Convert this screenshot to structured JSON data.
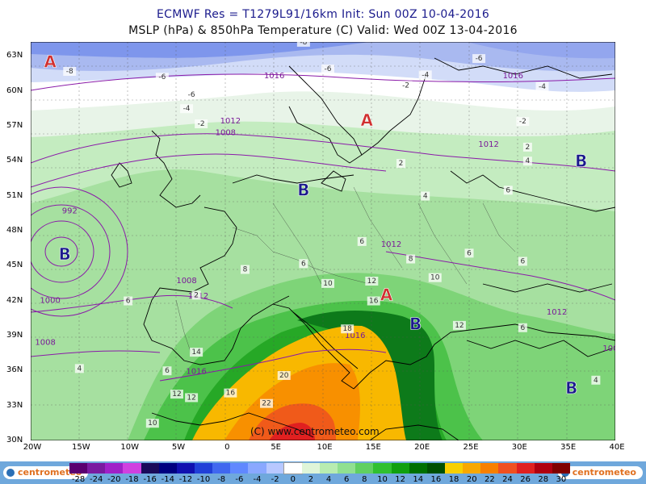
{
  "header": {
    "line1": "ECMWF Res = T1279L91/16km   Init: Sun 00Z 10-04-2016",
    "line2": "MSLP (hPa) & 850hPa Temperature (C)  Valid: Wed 00Z 13-04-2016"
  },
  "map": {
    "lat_labels": [
      "63N",
      "60N",
      "57N",
      "54N",
      "51N",
      "48N",
      "45N",
      "42N",
      "39N",
      "36N",
      "33N",
      "30N"
    ],
    "lon_labels": [
      "20W",
      "15W",
      "10W",
      "5W",
      "0",
      "5E",
      "10E",
      "15E",
      "20E",
      "25E",
      "30E",
      "35E",
      "40E"
    ],
    "copyright": "(C) www.centrometeo.com",
    "pressure_centers": [
      {
        "type": "A",
        "lon": -18,
        "lat": 62.5,
        "color": "#d03030"
      },
      {
        "type": "A",
        "lon": 14.5,
        "lat": 57.5,
        "color": "#d03030"
      },
      {
        "type": "A",
        "lon": 16.5,
        "lat": 42.5,
        "color": "#d03030"
      },
      {
        "type": "B",
        "lon": 36.5,
        "lat": 54,
        "color": "#1a1a8c"
      },
      {
        "type": "B",
        "lon": -16.5,
        "lat": 46,
        "color": "#1a1a8c"
      },
      {
        "type": "B",
        "lon": 8,
        "lat": 51.5,
        "color": "#1a1a8c"
      },
      {
        "type": "B",
        "lon": 19.5,
        "lat": 40,
        "color": "#1a1a8c"
      },
      {
        "type": "B",
        "lon": 35.5,
        "lat": 34.5,
        "color": "#1a1a8c"
      }
    ],
    "isobar_labels": [
      {
        "text": "1012",
        "lon": 0.5,
        "lat": 57.2
      },
      {
        "text": "1008",
        "lon": 0,
        "lat": 56.2
      },
      {
        "text": "1012",
        "lon": 27,
        "lat": 55.2
      },
      {
        "text": "992",
        "lon": -16,
        "lat": 49.5
      },
      {
        "text": "1000",
        "lon": -18,
        "lat": 41.8
      },
      {
        "text": "1008",
        "lon": -18.5,
        "lat": 38.2
      },
      {
        "text": "1008",
        "lon": -4,
        "lat": 43.5
      },
      {
        "text": "1012",
        "lon": -2.8,
        "lat": 42.2
      },
      {
        "text": "1016",
        "lon": -3,
        "lat": 35.7
      },
      {
        "text": "1012",
        "lon": 17,
        "lat": 46.6
      },
      {
        "text": "1012",
        "lon": 34,
        "lat": 40.8
      },
      {
        "text": "1016",
        "lon": 13.3,
        "lat": 38.8
      },
      {
        "text": "100",
        "lon": 39.5,
        "lat": 37.7
      },
      {
        "text": "1016",
        "lon": 29.5,
        "lat": 61.1
      },
      {
        "text": "1016",
        "lon": 5,
        "lat": 61.1
      }
    ],
    "temp_labels": [
      {
        "text": "-8",
        "lon": -16,
        "lat": 61.5
      },
      {
        "text": "-6",
        "lon": -6.5,
        "lat": 61
      },
      {
        "text": "-6",
        "lon": -3.5,
        "lat": 59.5
      },
      {
        "text": "-4",
        "lon": -4,
        "lat": 58.3
      },
      {
        "text": "-2",
        "lon": -2.5,
        "lat": 57
      },
      {
        "text": "-8",
        "lon": 8,
        "lat": 64
      },
      {
        "text": "-6",
        "lon": 10.5,
        "lat": 61.7
      },
      {
        "text": "-4",
        "lon": 20.5,
        "lat": 61.2
      },
      {
        "text": "-2",
        "lon": 18.5,
        "lat": 60.3
      },
      {
        "text": "-6",
        "lon": 26,
        "lat": 62.6
      },
      {
        "text": "-4",
        "lon": 32.5,
        "lat": 60.2
      },
      {
        "text": "-2",
        "lon": 30.5,
        "lat": 57.2
      },
      {
        "text": "2",
        "lon": 31,
        "lat": 55
      },
      {
        "text": "4",
        "lon": 31,
        "lat": 53.8
      },
      {
        "text": "2",
        "lon": 18,
        "lat": 53.6
      },
      {
        "text": "4",
        "lon": 20.5,
        "lat": 50.8
      },
      {
        "text": "6",
        "lon": 29,
        "lat": 51.3
      },
      {
        "text": "6",
        "lon": 14,
        "lat": 46.9
      },
      {
        "text": "8",
        "lon": 19,
        "lat": 45.4
      },
      {
        "text": "6",
        "lon": 25,
        "lat": 45.9
      },
      {
        "text": "6",
        "lon": 30.5,
        "lat": 45.2
      },
      {
        "text": "10",
        "lon": 21.5,
        "lat": 43.8
      },
      {
        "text": "12",
        "lon": 15,
        "lat": 43.5
      },
      {
        "text": "10",
        "lon": 10.5,
        "lat": 43.3
      },
      {
        "text": "8",
        "lon": 2,
        "lat": 44.5
      },
      {
        "text": "6",
        "lon": 8,
        "lat": 45
      },
      {
        "text": "6",
        "lon": -10,
        "lat": 41.8
      },
      {
        "text": "2",
        "lon": -3,
        "lat": 42.3
      },
      {
        "text": "4",
        "lon": -15,
        "lat": 36
      },
      {
        "text": "6",
        "lon": -6,
        "lat": 35.8
      },
      {
        "text": "12",
        "lon": 24,
        "lat": 39.7
      },
      {
        "text": "16",
        "lon": 15.2,
        "lat": 41.8
      },
      {
        "text": "18",
        "lon": 12.5,
        "lat": 39.4
      },
      {
        "text": "20",
        "lon": 6,
        "lat": 35.4
      },
      {
        "text": "22",
        "lon": 4.2,
        "lat": 33
      },
      {
        "text": "16",
        "lon": 0.5,
        "lat": 33.9
      },
      {
        "text": "14",
        "lon": -3,
        "lat": 37.4
      },
      {
        "text": "12",
        "lon": -3.5,
        "lat": 33.5
      },
      {
        "text": "12",
        "lon": -5,
        "lat": 33.8
      },
      {
        "text": "10",
        "lon": -7.5,
        "lat": 31.3
      },
      {
        "text": "6",
        "lon": 30.5,
        "lat": 39.5
      },
      {
        "text": "4",
        "lon": 38,
        "lat": 35
      }
    ]
  },
  "colorbar": {
    "ticks": [
      "-28",
      "-24",
      "-20",
      "-18",
      "-16",
      "-14",
      "-12",
      "-10",
      "-8",
      "-6",
      "-4",
      "-2",
      "0",
      "2",
      "4",
      "6",
      "8",
      "10",
      "12",
      "14",
      "16",
      "18",
      "20",
      "22",
      "24",
      "26",
      "28",
      "30"
    ],
    "colors": [
      "#5a0070",
      "#7a1aa0",
      "#a020c8",
      "#d040e0",
      "#1a0a5a",
      "#000080",
      "#1010b0",
      "#2040d8",
      "#4068f0",
      "#6088ff",
      "#8aa8ff",
      "#b8c8ff",
      "#ffffff",
      "#dff5d8",
      "#b8ecb0",
      "#90e090",
      "#60d060",
      "#30c030",
      "#10a010",
      "#007000",
      "#005000",
      "#f8d000",
      "#f8a800",
      "#f88000",
      "#f05020",
      "#e02020",
      "#b00010",
      "#800000"
    ]
  },
  "branding": {
    "left_logo": "centrometeo",
    "right_logo": "centrometeo"
  }
}
